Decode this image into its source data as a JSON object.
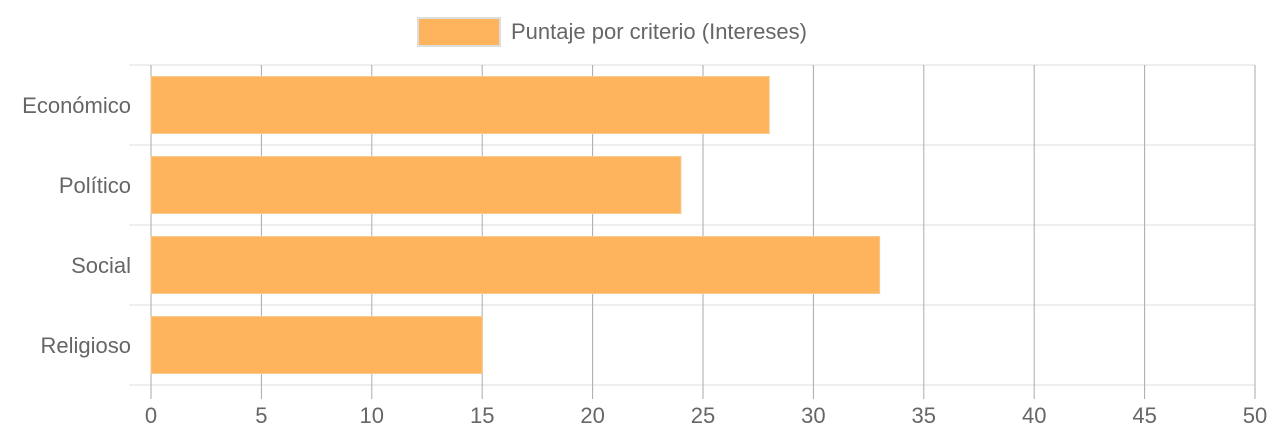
{
  "chart_data": {
    "type": "bar",
    "orientation": "horizontal",
    "categories": [
      "Económico",
      "Político",
      "Social",
      "Religioso"
    ],
    "series": [
      {
        "name": "Puntaje por criterio (Intereses)",
        "values": [
          28,
          24,
          33,
          15
        ],
        "color": "#fdb45c",
        "border_color": "#f5c98f"
      }
    ],
    "xlim": [
      0,
      50
    ],
    "x_ticks": [
      0,
      5,
      10,
      15,
      20,
      25,
      30,
      35,
      40,
      45,
      50
    ],
    "grid": true,
    "legend_position": "top-center",
    "colors": {
      "grid_vertical": "#aaaaaa",
      "grid_horizontal": "#dddddd",
      "text": "#666666"
    }
  }
}
